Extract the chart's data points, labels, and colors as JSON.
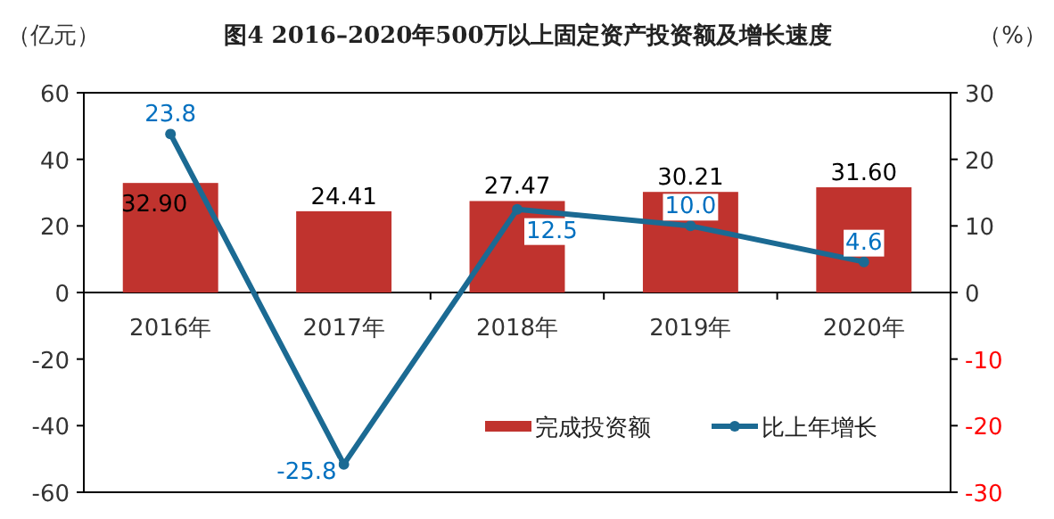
{
  "chart_data": {
    "type": "bar",
    "title": "图4  2016–2020年500万以上固定资产投资额及增长速度",
    "ylabel": "（亿元）",
    "y2label": "（%）",
    "categories": [
      "2016年",
      "2017年",
      "2018年",
      "2019年",
      "2020年"
    ],
    "series": [
      {
        "name": "完成投资额",
        "type": "bar",
        "color": "#c0332e",
        "values": [
          32.9,
          24.41,
          27.47,
          30.21,
          31.6
        ],
        "value_labels": [
          "32.90",
          "24.41",
          "27.47",
          "30.21",
          "31.60"
        ]
      },
      {
        "name": "比上年增长",
        "type": "line",
        "axis": "y2",
        "color": "#1b6a93",
        "values": [
          23.8,
          -25.8,
          12.5,
          10.0,
          4.6
        ],
        "value_labels": [
          "23.8",
          "-25.8",
          "12.5",
          "10.0",
          "4.6"
        ]
      }
    ],
    "ylim": [
      -60,
      60
    ],
    "yticks": [
      -60,
      -40,
      -20,
      0,
      20,
      40,
      60
    ],
    "y2lim": [
      -30,
      30
    ],
    "y2ticks": [
      -30,
      -20,
      -10,
      0,
      10,
      20,
      30
    ],
    "legend": "bottom right",
    "marker": "circle",
    "grid": false
  }
}
